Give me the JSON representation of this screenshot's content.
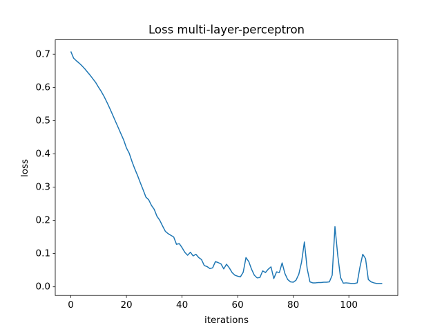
{
  "chart_data": {
    "type": "line",
    "title": "Loss multi-layer-perceptron",
    "x_label": "iterations",
    "y_label": "loss",
    "x": [
      0,
      1,
      2,
      3,
      4,
      5,
      6,
      7,
      8,
      9,
      10,
      11,
      12,
      13,
      14,
      15,
      16,
      17,
      18,
      19,
      20,
      21,
      22,
      23,
      24,
      25,
      26,
      27,
      28,
      29,
      30,
      31,
      32,
      33,
      34,
      35,
      36,
      37,
      38,
      39,
      40,
      41,
      42,
      43,
      44,
      45,
      46,
      47,
      48,
      49,
      50,
      51,
      52,
      53,
      54,
      55,
      56,
      57,
      58,
      59,
      60,
      61,
      62,
      63,
      64,
      65,
      66,
      67,
      68,
      69,
      70,
      71,
      72,
      73,
      74,
      75,
      76,
      77,
      78,
      79,
      80,
      81,
      82,
      83,
      84,
      85,
      86,
      87,
      88,
      89,
      90,
      91,
      92,
      93,
      94,
      95,
      96,
      97,
      98,
      99,
      100,
      101,
      102,
      103,
      104,
      105,
      106,
      107,
      108,
      109,
      110,
      111,
      112
    ],
    "values": [
      0.708,
      0.688,
      0.68,
      0.673,
      0.665,
      0.656,
      0.646,
      0.636,
      0.625,
      0.614,
      0.6,
      0.587,
      0.572,
      0.555,
      0.537,
      0.518,
      0.499,
      0.48,
      0.461,
      0.442,
      0.418,
      0.402,
      0.377,
      0.355,
      0.335,
      0.313,
      0.292,
      0.27,
      0.262,
      0.245,
      0.233,
      0.212,
      0.2,
      0.183,
      0.167,
      0.16,
      0.155,
      0.15,
      0.128,
      0.13,
      0.118,
      0.104,
      0.095,
      0.104,
      0.093,
      0.098,
      0.088,
      0.082,
      0.064,
      0.061,
      0.055,
      0.057,
      0.076,
      0.073,
      0.069,
      0.054,
      0.068,
      0.057,
      0.043,
      0.035,
      0.032,
      0.03,
      0.044,
      0.088,
      0.076,
      0.053,
      0.035,
      0.027,
      0.028,
      0.048,
      0.043,
      0.053,
      0.06,
      0.025,
      0.045,
      0.043,
      0.072,
      0.04,
      0.022,
      0.015,
      0.014,
      0.02,
      0.038,
      0.075,
      0.135,
      0.055,
      0.015,
      0.012,
      0.012,
      0.013,
      0.013,
      0.014,
      0.014,
      0.015,
      0.035,
      0.181,
      0.095,
      0.028,
      0.011,
      0.012,
      0.011,
      0.01,
      0.01,
      0.012,
      0.06,
      0.098,
      0.085,
      0.022,
      0.015,
      0.012,
      0.01,
      0.01,
      0.01
    ],
    "color": "#1f77b4",
    "xlim": [
      -5.6,
      117.6
    ],
    "xticks": [
      0,
      20,
      40,
      60,
      80,
      100
    ],
    "ylim": [
      -0.026,
      0.743
    ],
    "yticks": [
      {
        "value": 0,
        "label": "0.0"
      },
      0.1,
      0.2,
      0.3,
      0.4,
      0.5,
      0.6,
      0.7
    ]
  }
}
